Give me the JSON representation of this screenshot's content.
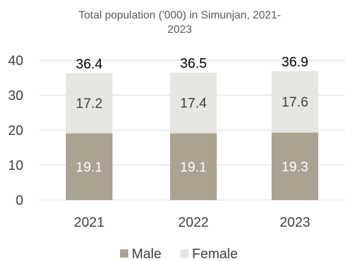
{
  "chart_data": {
    "type": "bar",
    "stacked": true,
    "title_lines": [
      "Total population ('000) in Simunjan, 2021-",
      "2023"
    ],
    "categories": [
      "2021",
      "2022",
      "2023"
    ],
    "series": [
      {
        "name": "Male",
        "values": [
          19.1,
          19.1,
          19.3
        ],
        "color": "#aca291",
        "label_color": "#ffffff"
      },
      {
        "name": "Female",
        "values": [
          17.2,
          17.4,
          17.6
        ],
        "color": "#e8e6e3",
        "label_color": "#404040"
      }
    ],
    "totals": [
      "36.4",
      "36.5",
      "36.9"
    ],
    "ylim": [
      0,
      40
    ],
    "yticks": [
      0,
      10,
      20,
      30,
      40
    ],
    "grid": true,
    "legend_position": "bottom"
  }
}
